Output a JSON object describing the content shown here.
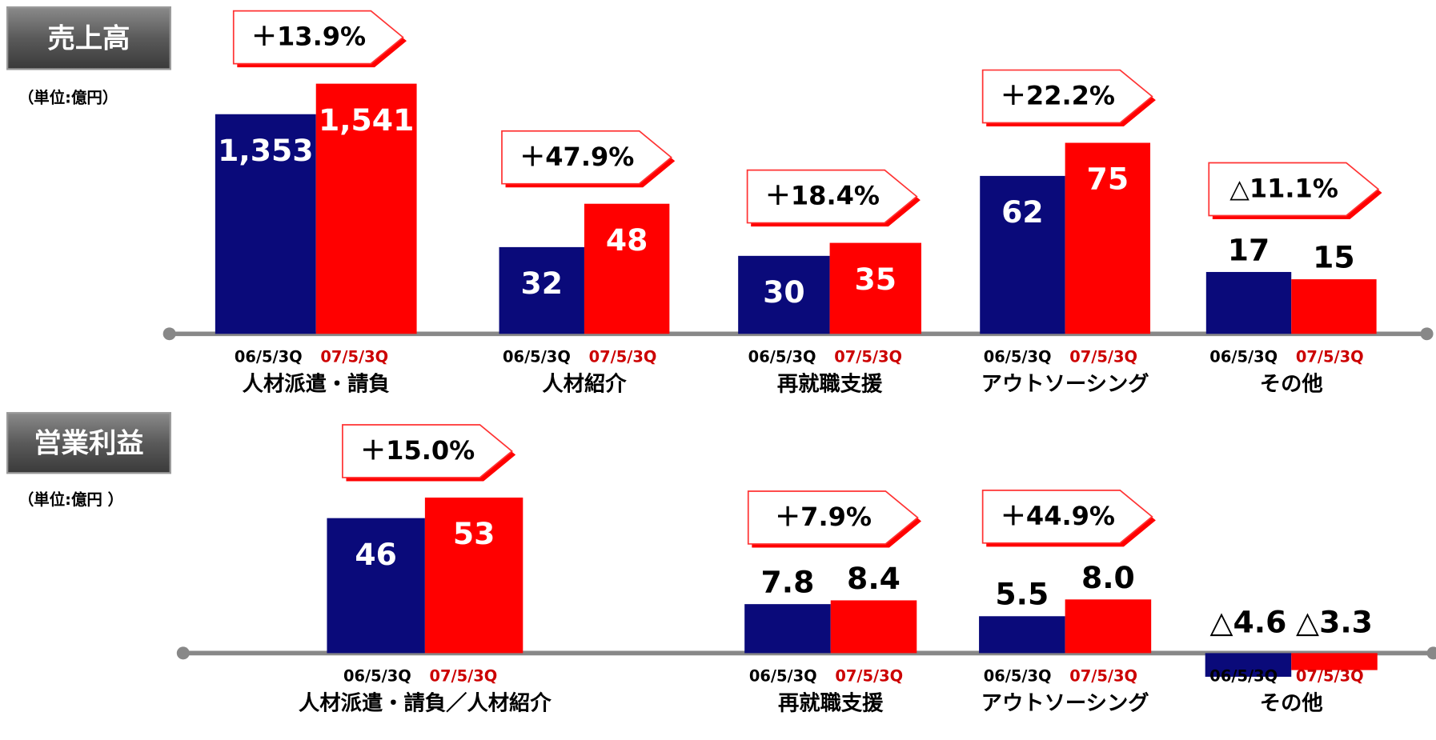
{
  "chart_data": [
    {
      "type": "bar",
      "title": "売上高",
      "unit": "（単位:億円）",
      "categories": [
        "人材派遣・請負",
        "人材紹介",
        "再就職支援",
        "アウトソーシング",
        "その他"
      ],
      "series": [
        {
          "name": "06/5/3Q",
          "color": "#0a0a7a",
          "values": [
            1353,
            32,
            30,
            62,
            17
          ],
          "value_labels": [
            "1,353",
            "32",
            "30",
            "62",
            "17"
          ]
        },
        {
          "name": "07/5/3Q",
          "color": "#ff0000",
          "values": [
            1541,
            48,
            35,
            75,
            15
          ],
          "value_labels": [
            "1,541",
            "48",
            "35",
            "75",
            "15"
          ]
        }
      ],
      "growth_labels": [
        "＋13.9%",
        "＋47.9%",
        "＋18.4%",
        "＋22.2%",
        "△11.1%"
      ]
    },
    {
      "type": "bar",
      "title": "営業利益",
      "unit": "（単位:億円 ）",
      "categories": [
        "人材派遣・請負／人材紹介",
        "再就職支援",
        "アウトソーシング",
        "その他"
      ],
      "series": [
        {
          "name": "06/5/3Q",
          "color": "#0a0a7a",
          "values": [
            46,
            7.8,
            5.5,
            -4.6
          ],
          "value_labels": [
            "46",
            "7.8",
            "5.5",
            "△4.6"
          ]
        },
        {
          "name": "07/5/3Q",
          "color": "#ff0000",
          "values": [
            53,
            8.4,
            8.0,
            -3.3
          ],
          "value_labels": [
            "53",
            "8.4",
            "8.0",
            "△3.3"
          ]
        }
      ],
      "growth_labels": [
        "＋15.0%",
        "＋7.9%",
        "＋44.9%"
      ]
    }
  ]
}
